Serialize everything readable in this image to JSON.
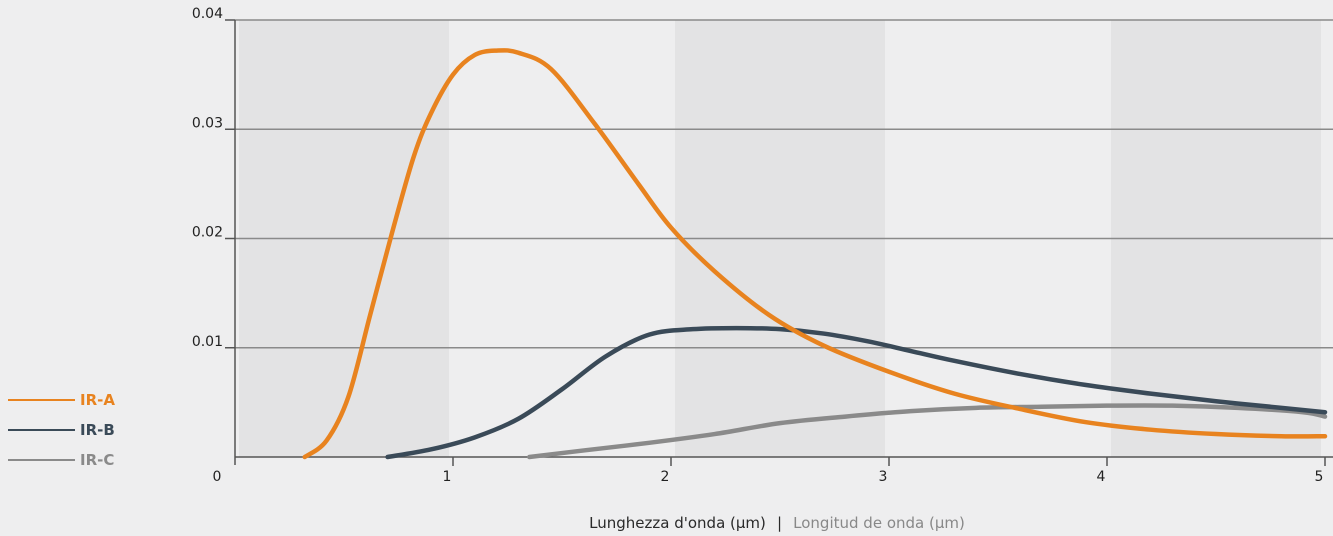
{
  "chart_data": {
    "type": "line",
    "xlabel": "Lunghezza d'onda (µm)",
    "xlabel_separator": "|",
    "xlabel_secondary": "Longitud de onda (µm)",
    "ylabel": "",
    "xlim": [
      0,
      5
    ],
    "ylim": [
      0,
      0.04
    ],
    "x_ticks": [
      0,
      1,
      2,
      3,
      4,
      5
    ],
    "x_tick_labels": [
      "0",
      "1",
      "2",
      "3",
      "4",
      "5"
    ],
    "y_ticks": [
      0.01,
      0.02,
      0.03,
      0.04
    ],
    "y_tick_labels": [
      "0.01",
      "0.02",
      "0.03",
      "0.04"
    ],
    "grid": "horizontal",
    "shaded_bands": [
      [
        0,
        1
      ],
      [
        2,
        3
      ],
      [
        4,
        5
      ]
    ],
    "legend_position": "left",
    "series": [
      {
        "name": "IR-A",
        "color": "#e8831f",
        "x": [
          0.32,
          0.42,
          0.52,
          0.62,
          0.72,
          0.82,
          0.9,
          1.0,
          1.1,
          1.2,
          1.3,
          1.45,
          1.65,
          1.85,
          2.0,
          2.2,
          2.45,
          2.7,
          3.0,
          3.3,
          3.6,
          3.9,
          4.2,
          4.5,
          4.8,
          5.0
        ],
        "y": [
          0.0,
          0.0015,
          0.0055,
          0.013,
          0.0205,
          0.0275,
          0.0315,
          0.035,
          0.0368,
          0.0372,
          0.037,
          0.0355,
          0.0305,
          0.025,
          0.021,
          0.017,
          0.013,
          0.0102,
          0.0078,
          0.0058,
          0.0044,
          0.0032,
          0.0025,
          0.0021,
          0.0019,
          0.0019
        ]
      },
      {
        "name": "IR-B",
        "color": "#3a4a58",
        "x": [
          0.7,
          0.9,
          1.1,
          1.3,
          1.5,
          1.7,
          1.9,
          2.1,
          2.3,
          2.5,
          2.7,
          2.9,
          3.1,
          3.3,
          3.6,
          3.9,
          4.2,
          4.5,
          4.8,
          5.0
        ],
        "y": [
          0.0,
          0.0007,
          0.0018,
          0.0035,
          0.0062,
          0.0092,
          0.0112,
          0.0117,
          0.0118,
          0.0117,
          0.0113,
          0.0106,
          0.0097,
          0.0088,
          0.0076,
          0.0066,
          0.0058,
          0.0051,
          0.0045,
          0.0041
        ]
      },
      {
        "name": "IR-C",
        "color": "#8a8a8a",
        "x": [
          1.35,
          1.6,
          1.9,
          2.2,
          2.5,
          2.8,
          3.1,
          3.4,
          3.7,
          4.0,
          4.3,
          4.6,
          4.9,
          5.0
        ],
        "y": [
          0.0,
          0.0006,
          0.0013,
          0.0021,
          0.0031,
          0.0037,
          0.0042,
          0.0045,
          0.0046,
          0.0047,
          0.0047,
          0.0045,
          0.0041,
          0.0037
        ]
      }
    ]
  }
}
